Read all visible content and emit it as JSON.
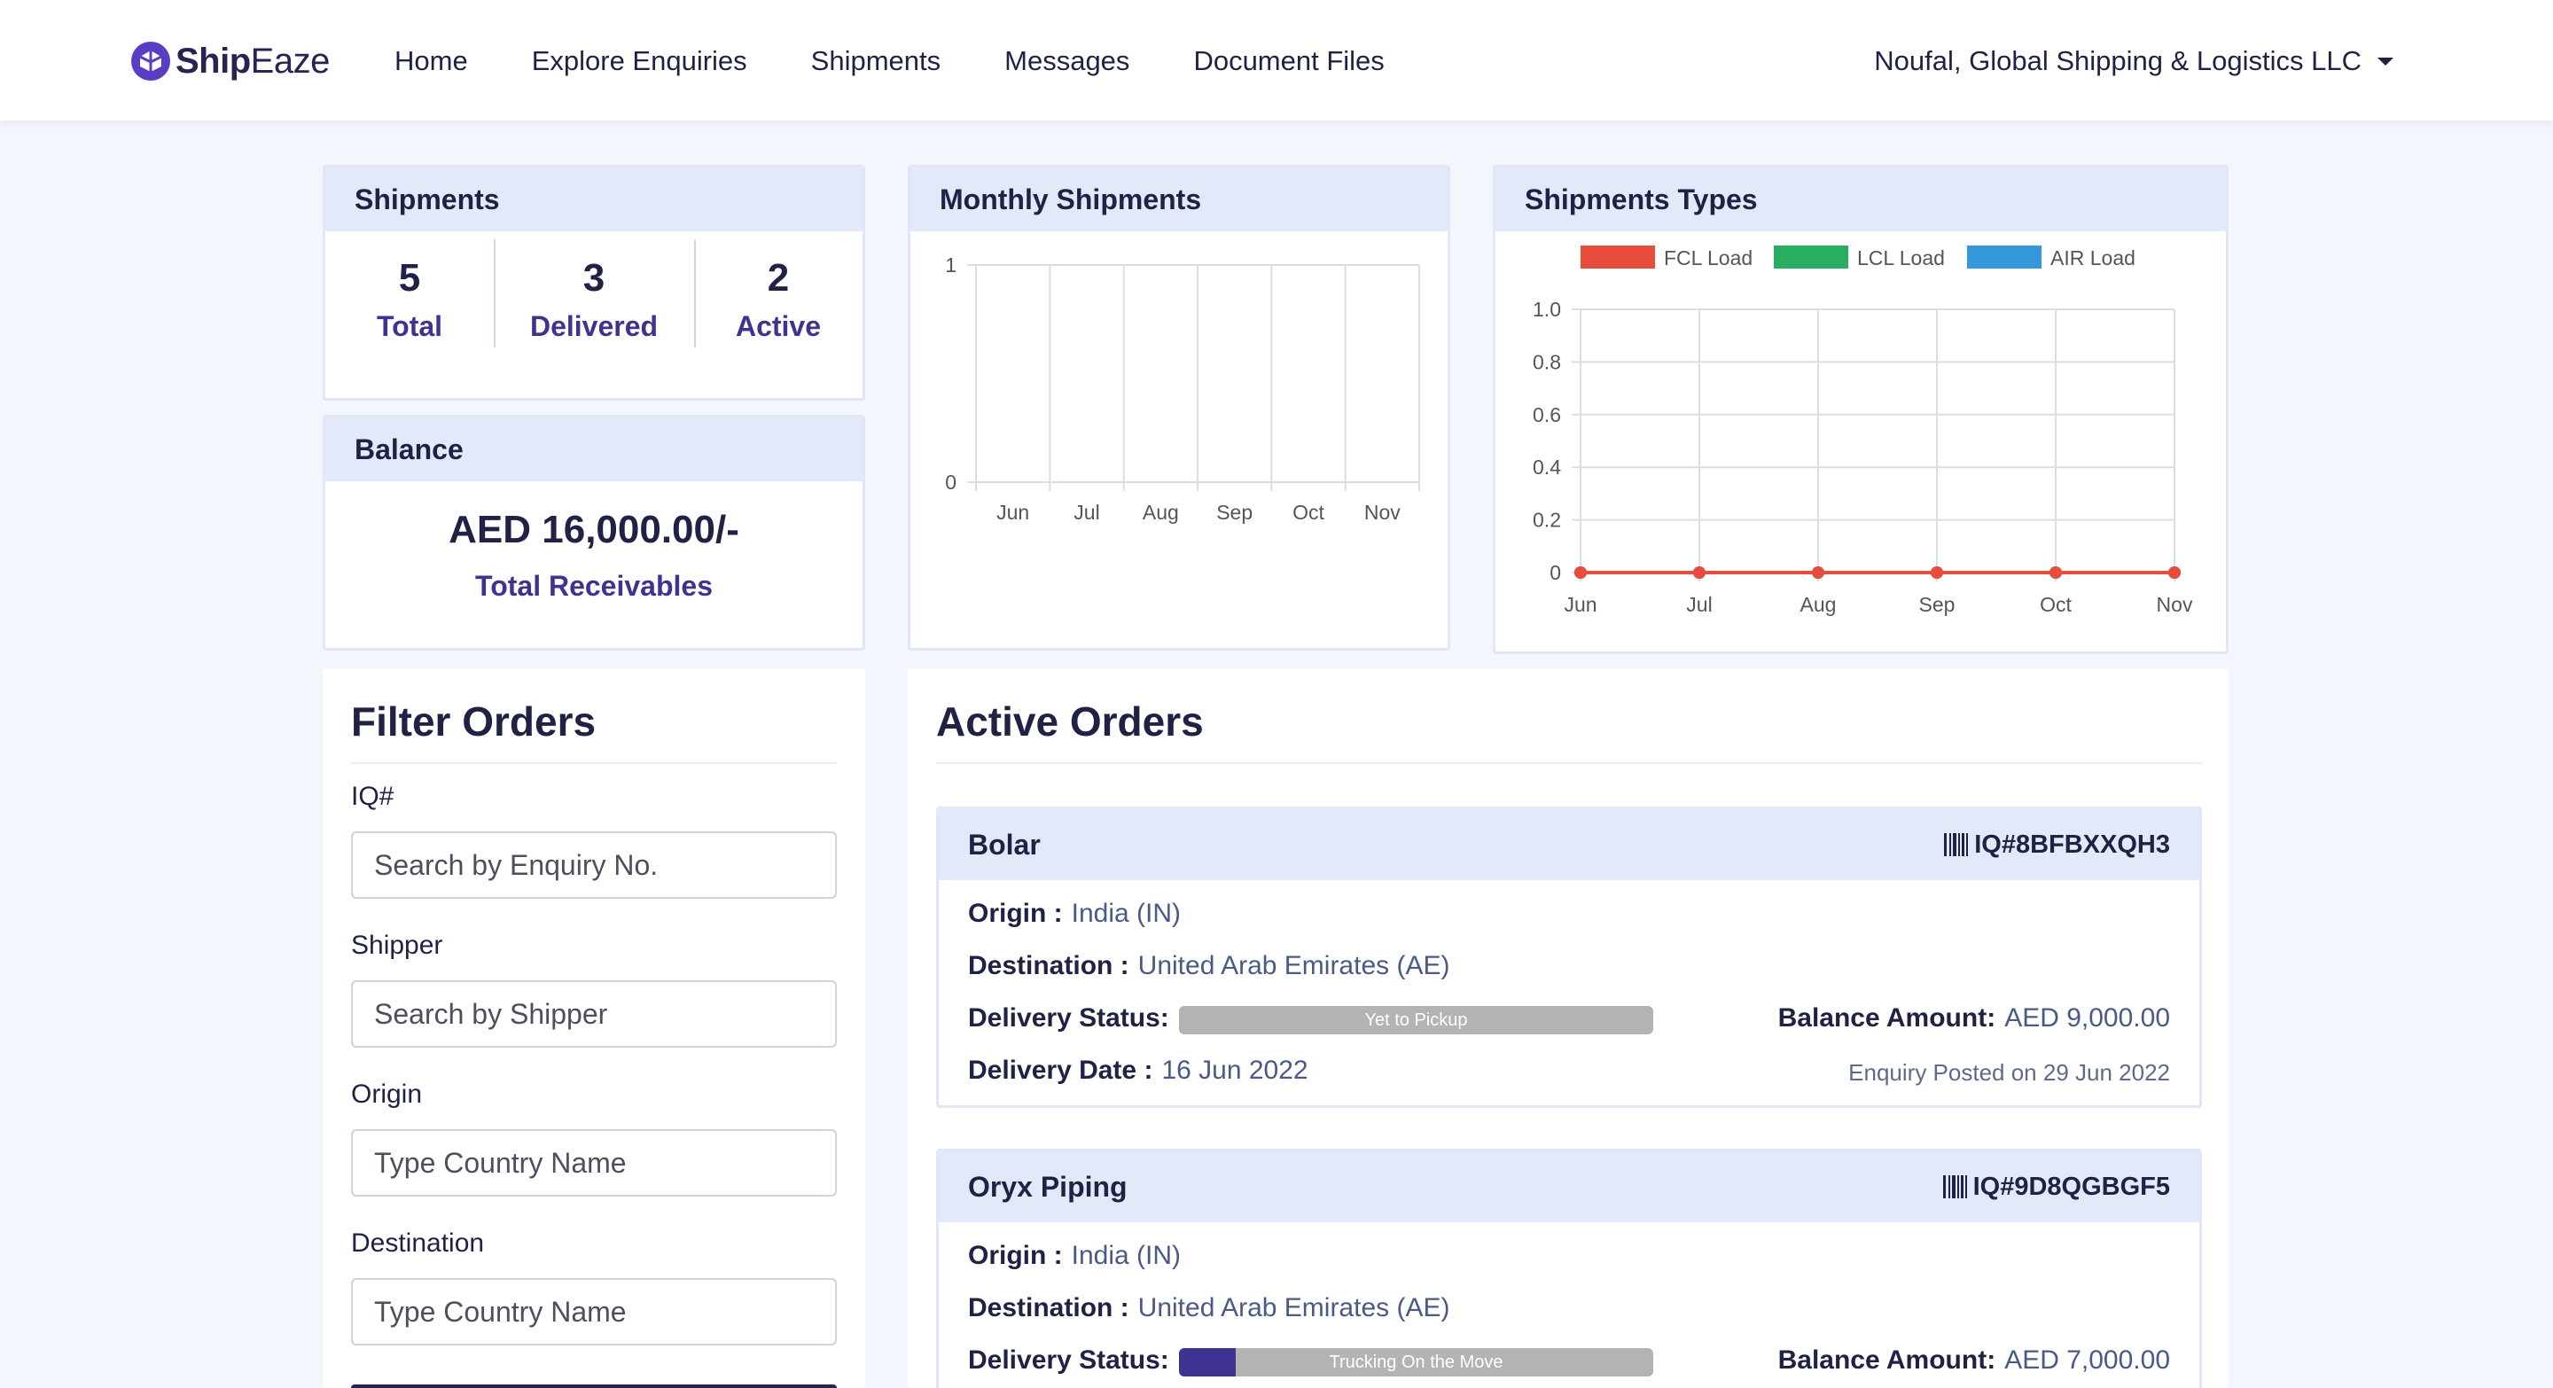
{
  "brand": {
    "name_bold": "Ship",
    "name_light": "Eaze"
  },
  "nav": {
    "links": [
      "Home",
      "Explore Enquiries",
      "Shipments",
      "Messages",
      "Document Files"
    ],
    "account": "Noufal, Global Shipping & Logistics LLC"
  },
  "shipments_card": {
    "title": "Shipments",
    "stats": [
      {
        "value": "5",
        "label": "Total"
      },
      {
        "value": "3",
        "label": "Delivered"
      },
      {
        "value": "2",
        "label": "Active"
      }
    ]
  },
  "balance_card": {
    "title": "Balance",
    "amount": "AED 16,000.00/-",
    "label": "Total Receivables"
  },
  "monthly_card": {
    "title": "Monthly Shipments"
  },
  "types_card": {
    "title": "Shipments Types"
  },
  "chart_data": [
    {
      "type": "bar",
      "title": "Monthly Shipments",
      "categories": [
        "Jun",
        "Jul",
        "Aug",
        "Sep",
        "Oct",
        "Nov"
      ],
      "values": [
        0,
        0,
        0,
        0,
        0,
        0
      ],
      "y_ticks": [
        "0",
        "1"
      ],
      "ylim": [
        0,
        1
      ],
      "grid": true
    },
    {
      "type": "line",
      "title": "Shipments Types",
      "categories": [
        "Jun",
        "Jul",
        "Aug",
        "Sep",
        "Oct",
        "Nov"
      ],
      "y_ticks": [
        "0",
        "0.2",
        "0.4",
        "0.6",
        "0.8",
        "1.0"
      ],
      "ylim": [
        0,
        1
      ],
      "grid": true,
      "legend_position": "top",
      "series": [
        {
          "name": "FCL Load",
          "color": "#e74c3c",
          "values": [
            0,
            0,
            0,
            0,
            0,
            0
          ]
        },
        {
          "name": "LCL Load",
          "color": "#27ae60",
          "values": [
            0,
            0,
            0,
            0,
            0,
            0
          ]
        },
        {
          "name": "AIR Load",
          "color": "#3498db",
          "values": [
            0,
            0,
            0,
            0,
            0,
            0
          ]
        }
      ]
    }
  ],
  "filter": {
    "title": "Filter Orders",
    "fields": [
      {
        "label": "IQ#",
        "placeholder": "Search by Enquiry No."
      },
      {
        "label": "Shipper",
        "placeholder": "Search by Shipper"
      },
      {
        "label": "Origin",
        "placeholder": "Type Country Name"
      },
      {
        "label": "Destination",
        "placeholder": "Type Country Name"
      }
    ]
  },
  "active_orders": {
    "title": "Active Orders",
    "labels": {
      "origin": "Origin :",
      "destination": "Destination :",
      "delivery_status": "Delivery Status:",
      "delivery_date": "Delivery Date :",
      "balance": "Balance Amount:"
    },
    "orders": [
      {
        "name": "Bolar",
        "iq": "IQ#8BFBXXQH3",
        "origin": "India (IN)",
        "destination": "United Arab Emirates (AE)",
        "status": "Yet to Pickup",
        "progress": 0,
        "balance": "AED 9,000.00",
        "delivery_date": "16 Jun 2022",
        "posted": "Enquiry Posted on 29 Jun 2022"
      },
      {
        "name": "Oryx Piping",
        "iq": "IQ#9D8QGBGF5",
        "origin": "India (IN)",
        "destination": "United Arab Emirates (AE)",
        "status": "Trucking On the Move",
        "progress": 0.12,
        "balance": "AED 7,000.00"
      }
    ]
  },
  "colors": {
    "brand": "#5b3cc4",
    "accent_text": "#3f3391",
    "card_header": "#e3e9f8",
    "page_bg": "#f3f6fd",
    "progress_track": "#b3b3b3"
  }
}
